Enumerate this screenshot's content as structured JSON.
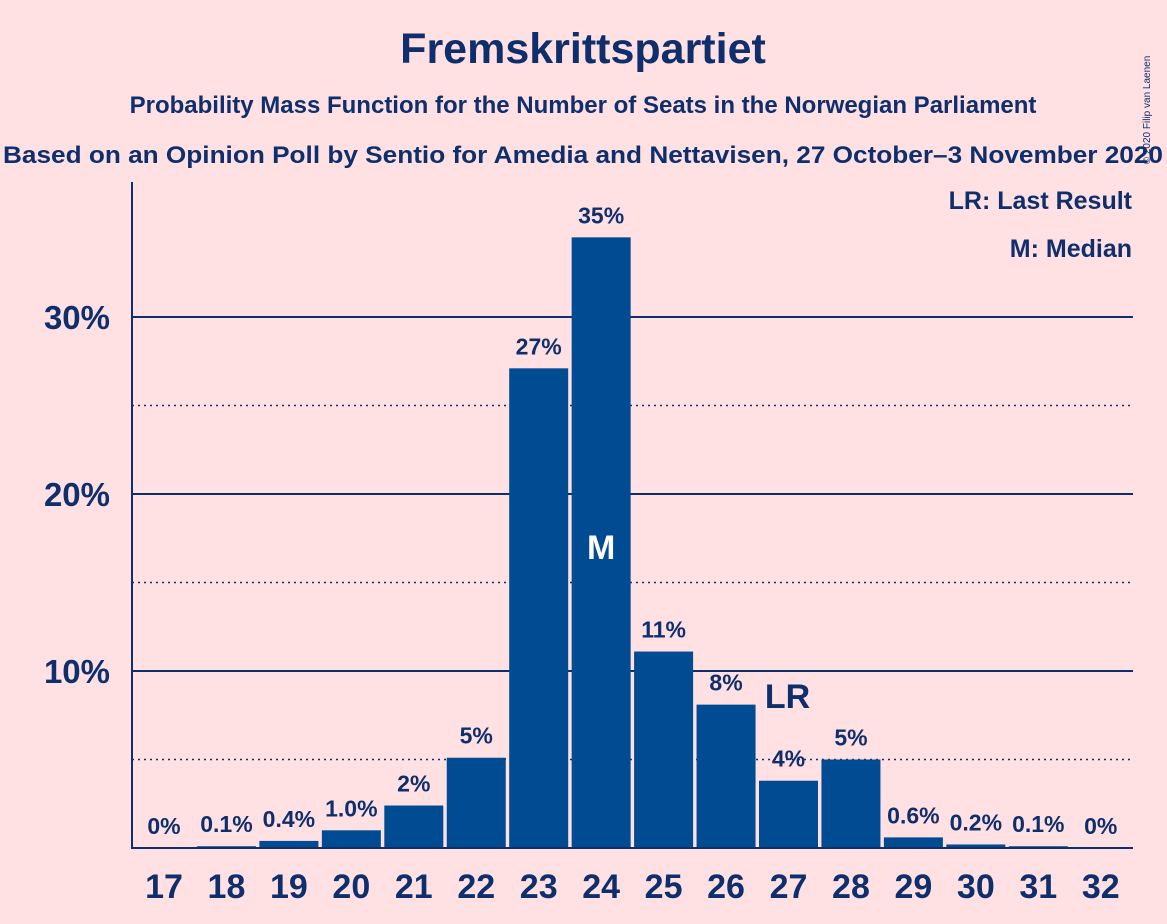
{
  "chart_data": {
    "type": "bar",
    "title": "Fremskrittspartiet",
    "subtitle": "Probability Mass Function for the Number of Seats in the Norwegian Parliament",
    "subtitle2": "Based on an Opinion Poll by Sentio for Amedia and Nettavisen, 27 October–3 November 2020",
    "copyright": "© 2020 Filip van Laenen",
    "categories": [
      "17",
      "18",
      "19",
      "20",
      "21",
      "22",
      "23",
      "24",
      "25",
      "26",
      "27",
      "28",
      "29",
      "30",
      "31",
      "32"
    ],
    "values": [
      0,
      0.1,
      0.4,
      1.0,
      2.4,
      5.1,
      27.1,
      34.5,
      11.1,
      8.1,
      3.8,
      5.0,
      0.6,
      0.2,
      0.1,
      0
    ],
    "data_labels": [
      "0%",
      "0.1%",
      "0.4%",
      "1.0%",
      "2%",
      "5%",
      "27%",
      "35%",
      "11%",
      "8%",
      "4%",
      "5%",
      "0.6%",
      "0.2%",
      "0.1%",
      "0%"
    ],
    "ylim": [
      0,
      37.5
    ],
    "yticks": [
      10,
      20,
      30
    ],
    "ytick_labels": [
      "10%",
      "20%",
      "30%"
    ],
    "minor_gridlines": [
      5,
      15,
      25
    ],
    "median_seat": "24",
    "median_marker": "M",
    "last_result_seat": "27",
    "last_result_marker": "LR",
    "legend": [
      "LR: Last Result",
      "M: Median"
    ],
    "legend_position": "top-right",
    "colors": {
      "bar": "#004B91",
      "text": "#0E2F6B",
      "background": "#FFE0E3",
      "median_marker": "#FFFFFF"
    }
  }
}
